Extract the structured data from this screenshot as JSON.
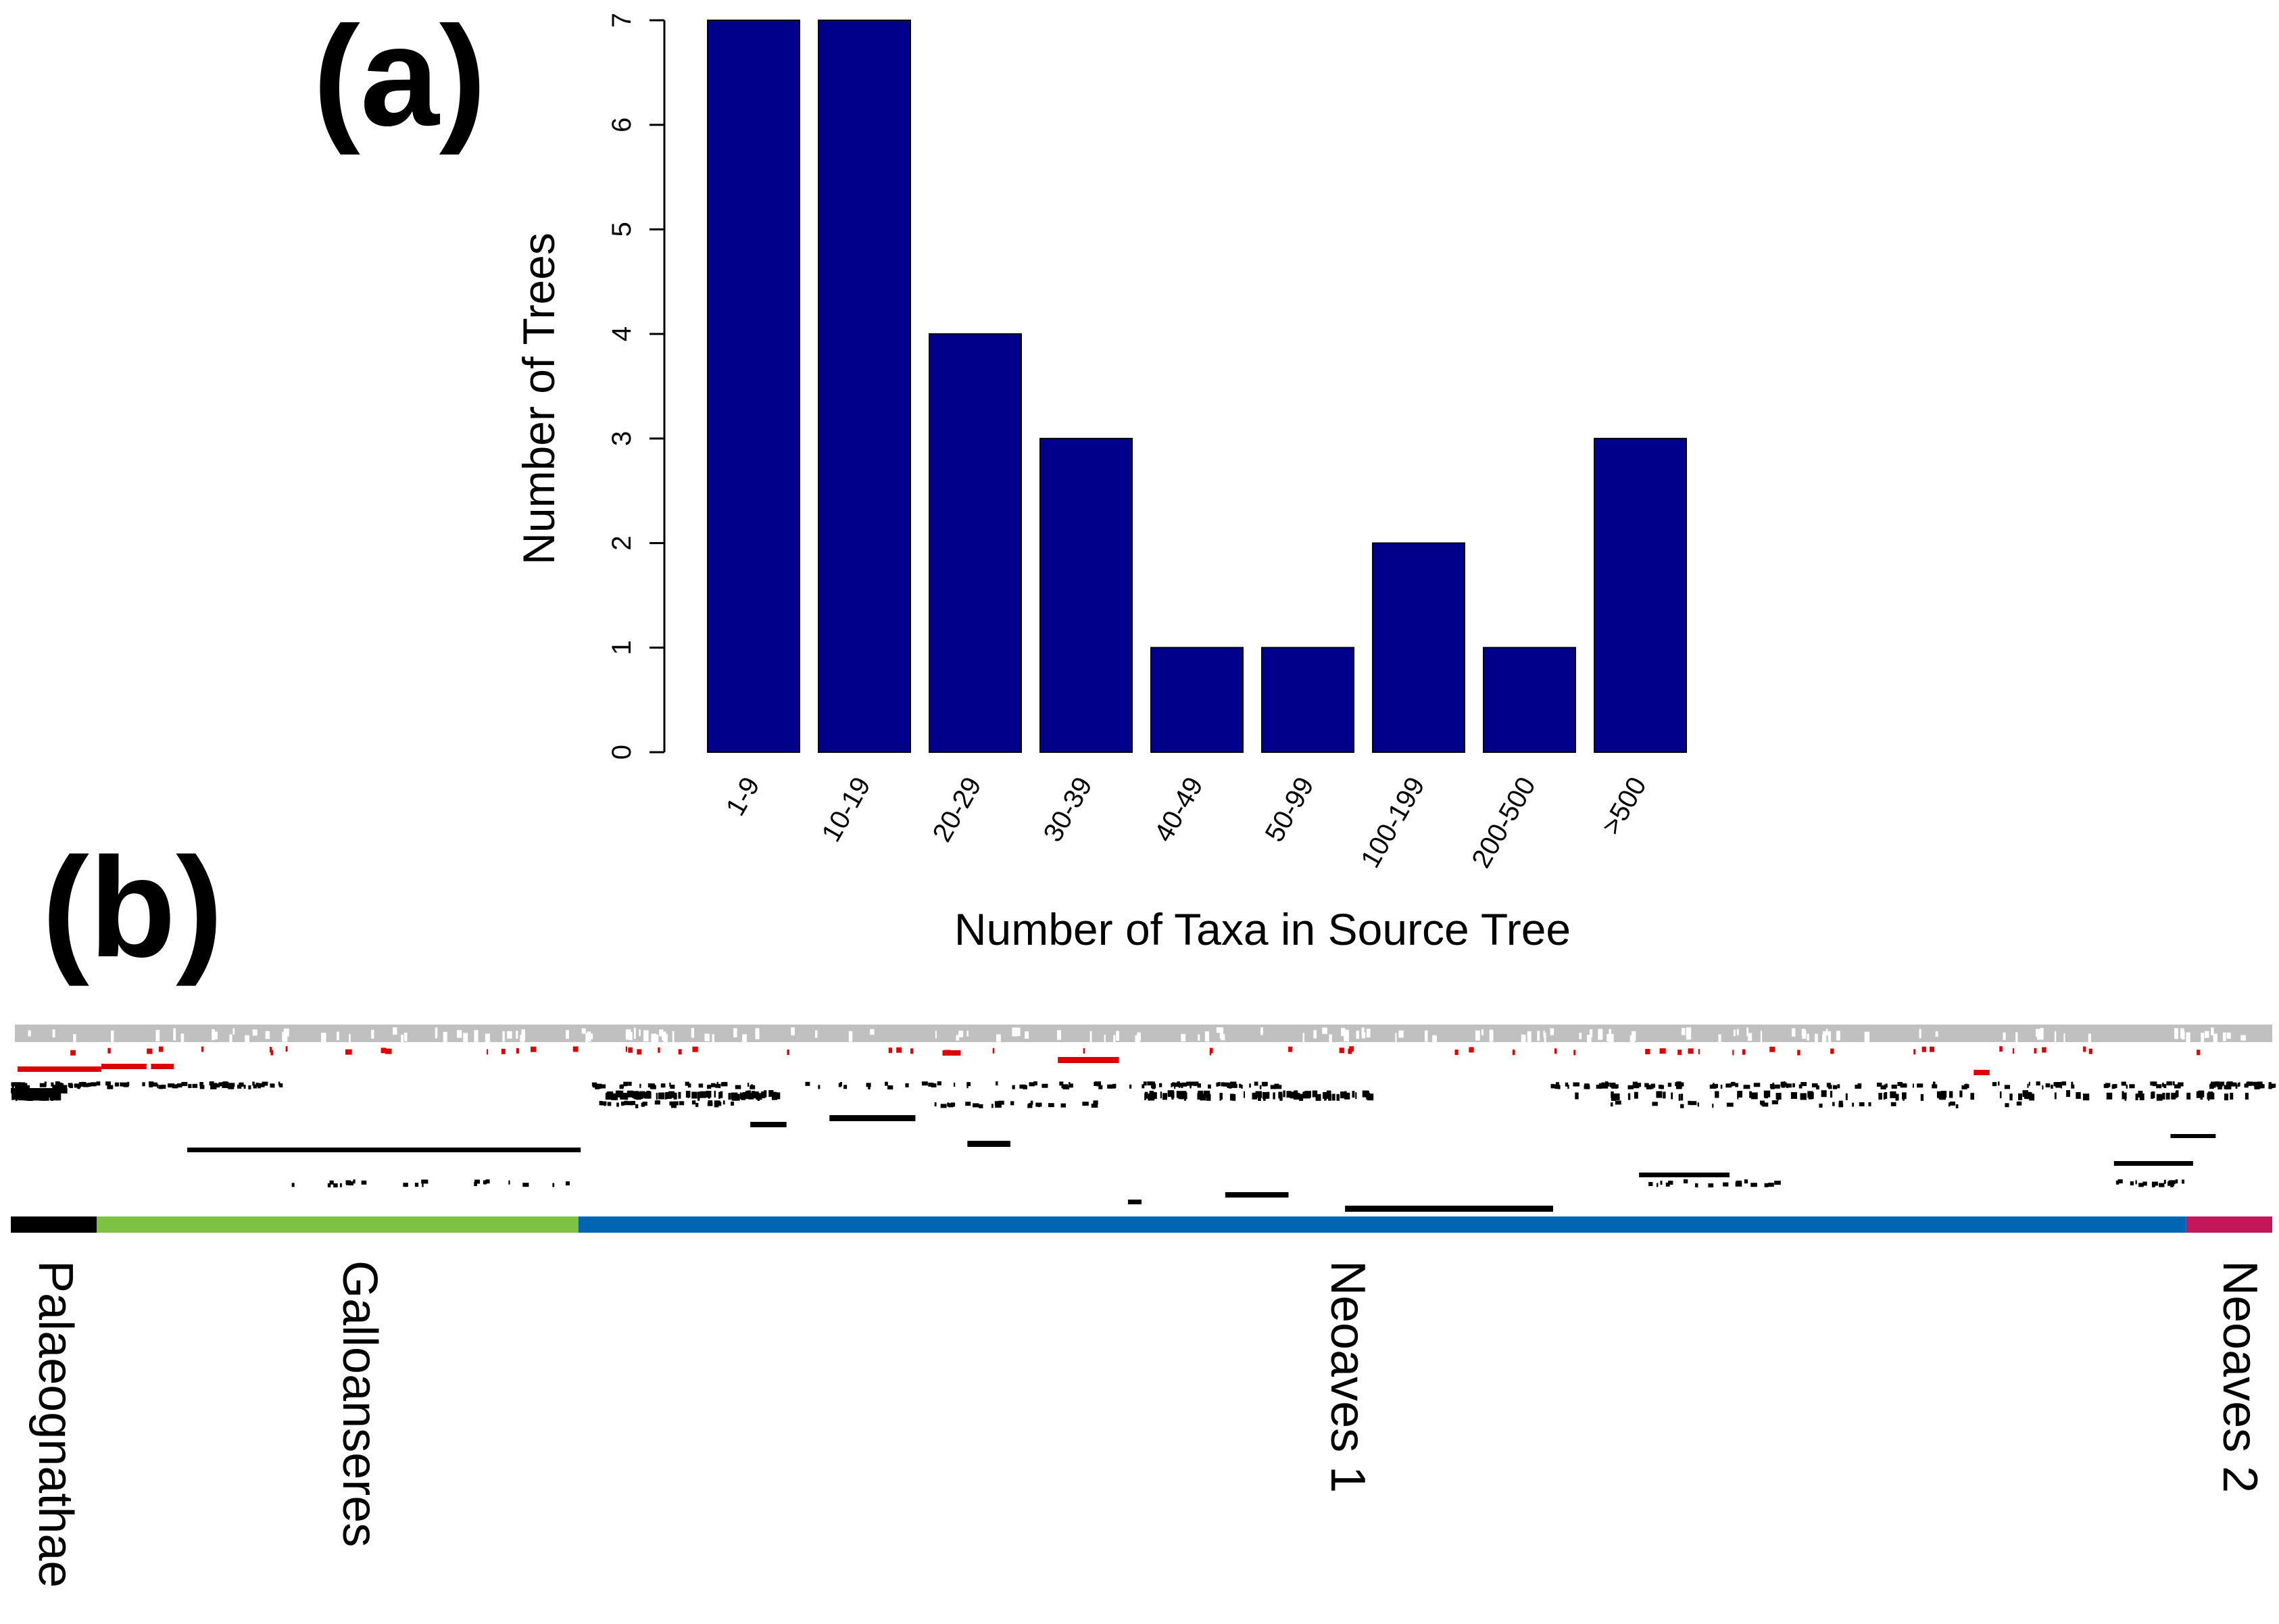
{
  "panels": {
    "a": {
      "label": "(a)",
      "chart_data": {
        "type": "bar",
        "title": "",
        "xlabel": "Number of Taxa in Source Tree",
        "ylabel": "Number of Trees",
        "categories": [
          "1-9",
          "10-19",
          "20-29",
          "30-39",
          "40-49",
          "50-99",
          "100-199",
          "200-500",
          ">500"
        ],
        "values": [
          7,
          7,
          4,
          3,
          1,
          1,
          2,
          1,
          3
        ],
        "ylim": [
          0,
          7
        ],
        "yticks": [
          "0",
          "1",
          "2",
          "3",
          "4",
          "5",
          "6",
          "7"
        ],
        "bar_color": "#00008b",
        "grid": false
      }
    },
    "b": {
      "label": "(b)",
      "chart_data": {
        "type": "heatmap",
        "description_rows": "taxon coverage matrix of source trees",
        "colors": {
          "coverage": "#000000",
          "highlight": "#dd0000",
          "background_row": "#c0c0c0"
        },
        "clades": [
          {
            "name": "Palaeognathae",
            "color": "#000000",
            "fraction_start": 0.0,
            "fraction_end": 0.038
          },
          {
            "name": "Galloanseres",
            "color": "#7dc242",
            "fraction_start": 0.038,
            "fraction_end": 0.251
          },
          {
            "name": "Neoaves 1",
            "color": "#0066b3",
            "fraction_start": 0.251,
            "fraction_end": 0.962
          },
          {
            "name": "Neoaves 2",
            "color": "#c2185b",
            "fraction_start": 0.962,
            "fraction_end": 1.0
          }
        ]
      }
    }
  }
}
